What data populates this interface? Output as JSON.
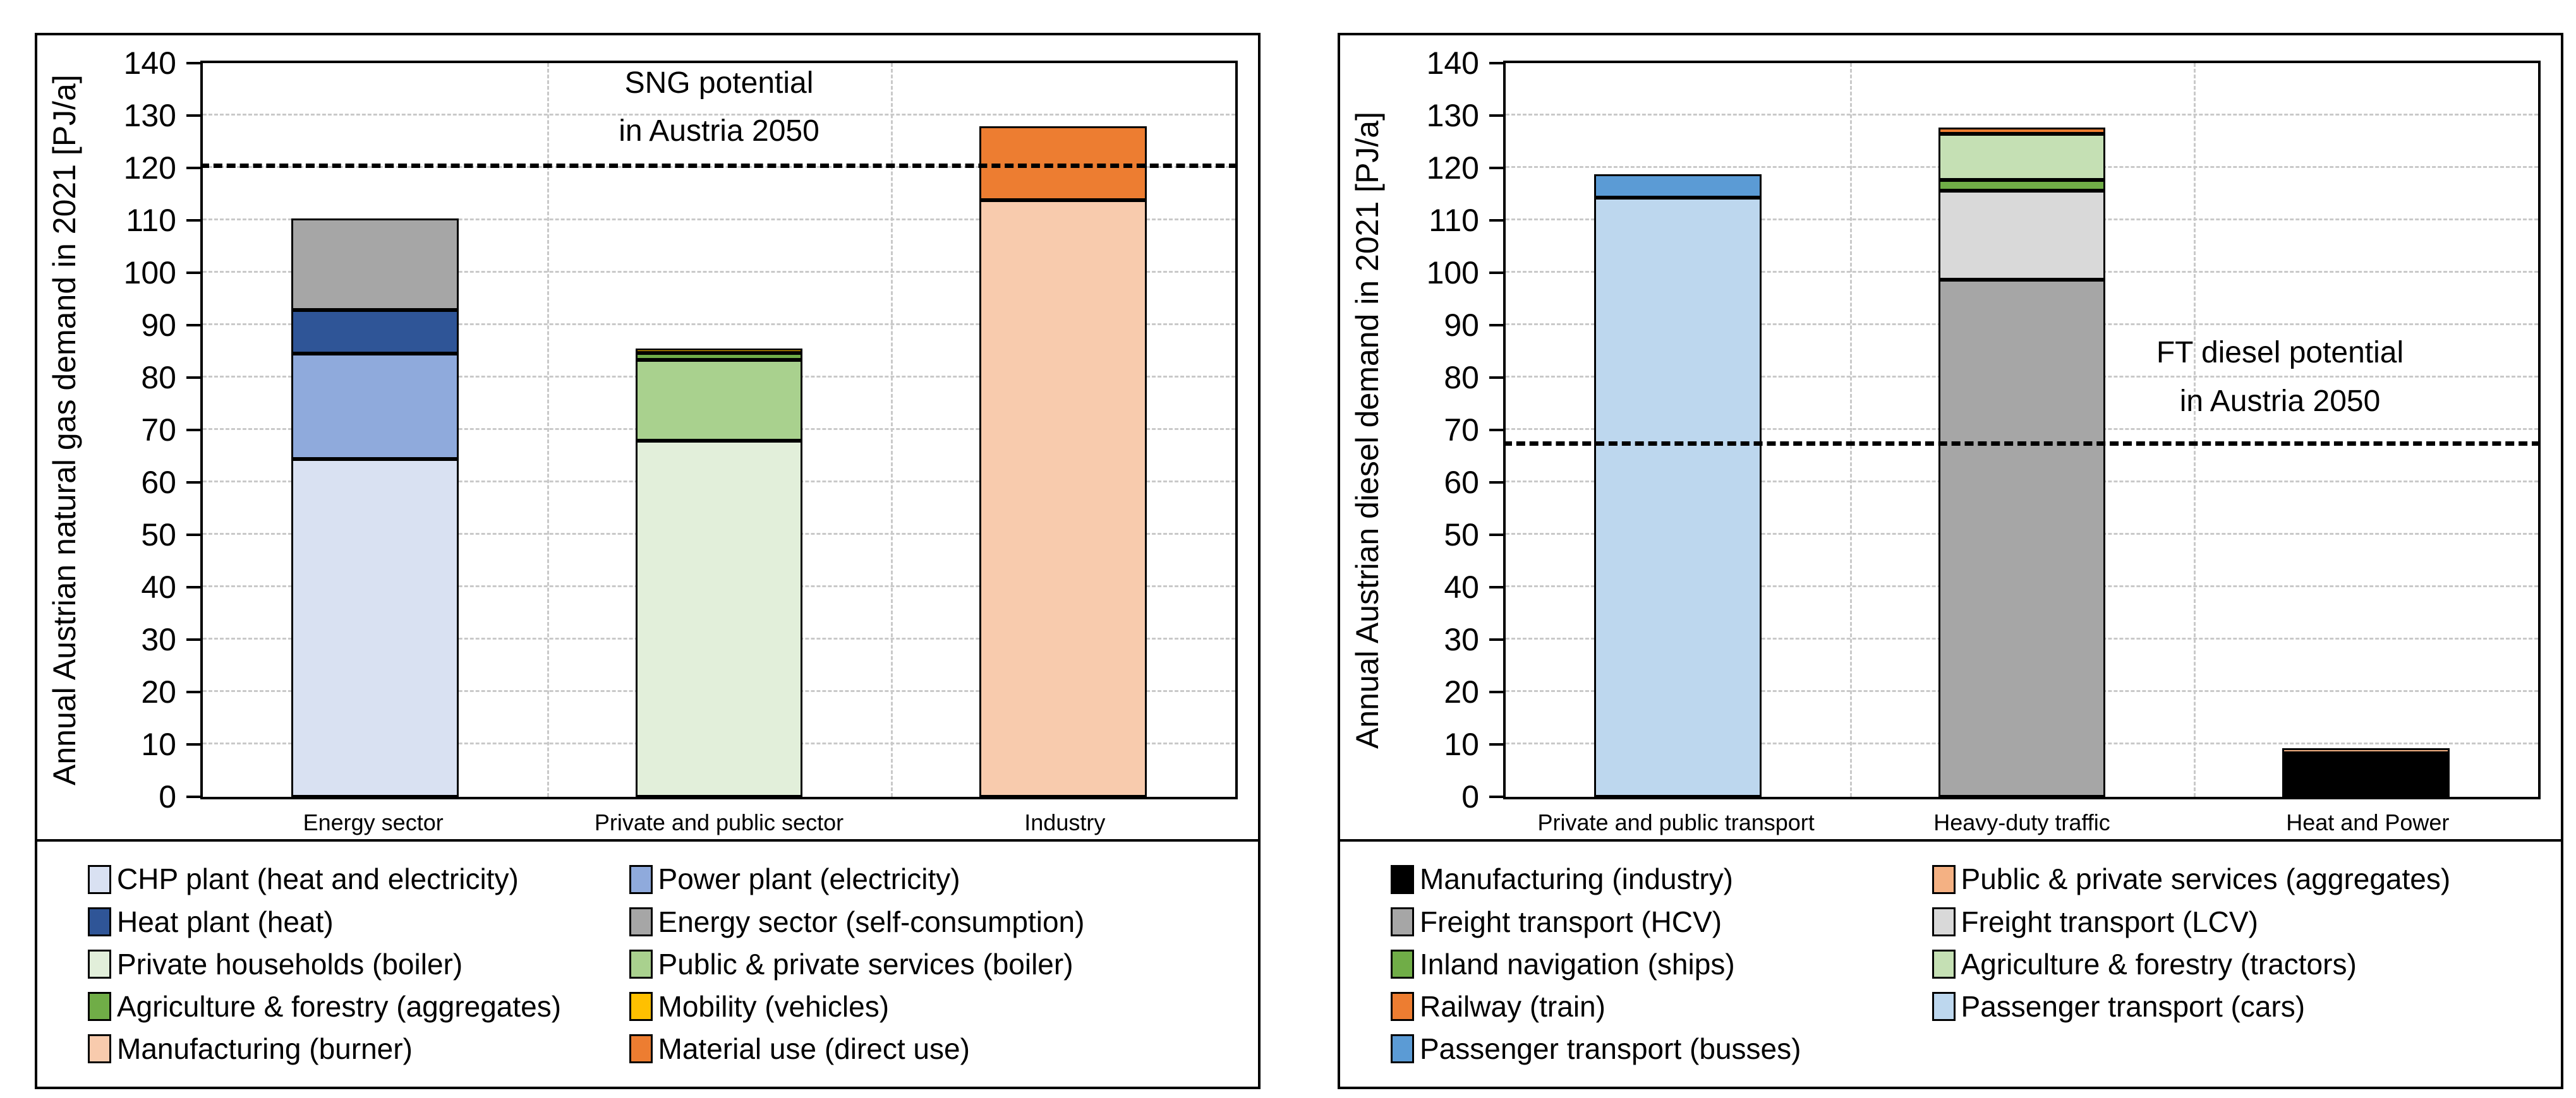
{
  "figure": {
    "background": "#ffffff",
    "panel_border_color": "#000000",
    "gridline_color": "#c9c9c9",
    "reference_line_color": "#000000"
  },
  "chart_data": [
    {
      "type": "bar",
      "stacked": true,
      "panel": "natural-gas",
      "y_axis_title": "Annual Austrian natural gas demand in 2021 [PJ/a]",
      "ylim": [
        0,
        140
      ],
      "ytick_step": 10,
      "grid": true,
      "legend_position": "bottom",
      "categories": [
        "Energy sector",
        "Private and public sector",
        "Industry"
      ],
      "bars": [
        {
          "category": "Energy sector",
          "total": 110.4,
          "segments": [
            {
              "label": "CHP plant (heat and electricity)",
              "value": 64.5,
              "color": "#d9e1f2"
            },
            {
              "label": "Power plant (electricity)",
              "value": 20.1,
              "color": "#8faadc"
            },
            {
              "label": "Heat plant (heat)",
              "value": 8.3,
              "color": "#2f5597"
            },
            {
              "label": "Energy sector (self-consumption)",
              "value": 17.5,
              "color": "#a6a6a6"
            }
          ]
        },
        {
          "category": "Private and public sector",
          "total": 85.5,
          "segments": [
            {
              "label": "Private households (boiler)",
              "value": 68.0,
              "color": "#e2efda"
            },
            {
              "label": "Public & private services (boiler)",
              "value": 15.4,
              "color": "#a9d18e"
            },
            {
              "label": "Agriculture & forestry (aggregates)",
              "value": 1.3,
              "color": "#70ad47"
            },
            {
              "label": "Mobility (vehicles)",
              "value": 0.8,
              "color": "#ffc000"
            }
          ]
        },
        {
          "category": "Industry",
          "total": 127.9,
          "segments": [
            {
              "label": "Manufacturing (burner)",
              "value": 113.8,
              "color": "#f8cbad"
            },
            {
              "label": "Material use (direct use)",
              "value": 14.1,
              "color": "#ed7d31"
            }
          ]
        }
      ],
      "reference_line": {
        "value": 120,
        "style": "dashed",
        "label_lines": [
          "SNG potential",
          "in Austria 2050"
        ],
        "label_x_pct": 50,
        "label_y_value": 131.5
      },
      "legend": [
        {
          "label": "CHP plant (heat and electricity)",
          "color": "#d9e1f2"
        },
        {
          "label": "Heat plant (heat)",
          "color": "#2f5597"
        },
        {
          "label": "Private households (boiler)",
          "color": "#e2efda"
        },
        {
          "label": "Agriculture & forestry (aggregates)",
          "color": "#70ad47"
        },
        {
          "label": "Manufacturing (burner)",
          "color": "#f8cbad"
        },
        {
          "label": "Power plant (electricity)",
          "color": "#8faadc"
        },
        {
          "label": "Energy sector (self-consumption)",
          "color": "#a6a6a6"
        },
        {
          "label": "Public & private services (boiler)",
          "color": "#a9d18e"
        },
        {
          "label": "Mobility (vehicles)",
          "color": "#ffc000"
        },
        {
          "label": "Material use (direct use)",
          "color": "#ed7d31"
        }
      ]
    },
    {
      "type": "bar",
      "stacked": true,
      "panel": "diesel",
      "y_axis_title": "Annual Austrian diesel demand in 2021 [PJ/a]",
      "ylim": [
        0,
        140
      ],
      "ytick_step": 10,
      "grid": true,
      "legend_position": "bottom",
      "categories": [
        "Private and public transport",
        "Heavy-duty traffic",
        "Heat and Power"
      ],
      "bars": [
        {
          "category": "Private and public transport",
          "total": 118.8,
          "segments": [
            {
              "label": "Passenger transport (cars)",
              "value": 114.3,
              "color": "#bdd7ee"
            },
            {
              "label": "Passenger transport (busses)",
              "value": 4.5,
              "color": "#5b9bd5"
            }
          ]
        },
        {
          "category": "Heavy-duty traffic",
          "total": 127.7,
          "segments": [
            {
              "label": "Freight transport (HCV)",
              "value": 98.7,
              "color": "#a6a6a6"
            },
            {
              "label": "Freight transport (LCV)",
              "value": 17.0,
              "color": "#d9d9d9"
            },
            {
              "label": "Inland navigation (ships)",
              "value": 2.0,
              "color": "#70ad47"
            },
            {
              "label": "Agriculture & forestry (tractors)",
              "value": 8.8,
              "color": "#c5e0b4"
            },
            {
              "label": "Railway (train)",
              "value": 1.2,
              "color": "#ed7d31"
            }
          ]
        },
        {
          "category": "Heat and Power",
          "total": 9.3,
          "segments": [
            {
              "label": "Manufacturing (industry)",
              "value": 8.3,
              "color": "#000000"
            },
            {
              "label": "Public & private services (aggregates)",
              "value": 1.0,
              "color": "#f4b183"
            }
          ]
        }
      ],
      "reference_line": {
        "value": 67,
        "style": "dashed",
        "label_lines": [
          "FT diesel potential",
          "in Austria 2050"
        ],
        "label_x_pct": 75,
        "label_y_value": 80
      },
      "legend": [
        {
          "label": "Manufacturing (industry)",
          "color": "#000000"
        },
        {
          "label": "Freight transport (HCV)",
          "color": "#a6a6a6"
        },
        {
          "label": "Inland navigation (ships)",
          "color": "#70ad47"
        },
        {
          "label": "Railway (train)",
          "color": "#ed7d31"
        },
        {
          "label": "Passenger transport (busses)",
          "color": "#5b9bd5"
        },
        {
          "label": "Public & private services (aggregates)",
          "color": "#f4b183"
        },
        {
          "label": "Freight transport (LCV)",
          "color": "#d9d9d9"
        },
        {
          "label": "Agriculture & forestry (tractors)",
          "color": "#c5e0b4"
        },
        {
          "label": "Passenger transport (cars)",
          "color": "#bdd7ee"
        }
      ]
    }
  ]
}
